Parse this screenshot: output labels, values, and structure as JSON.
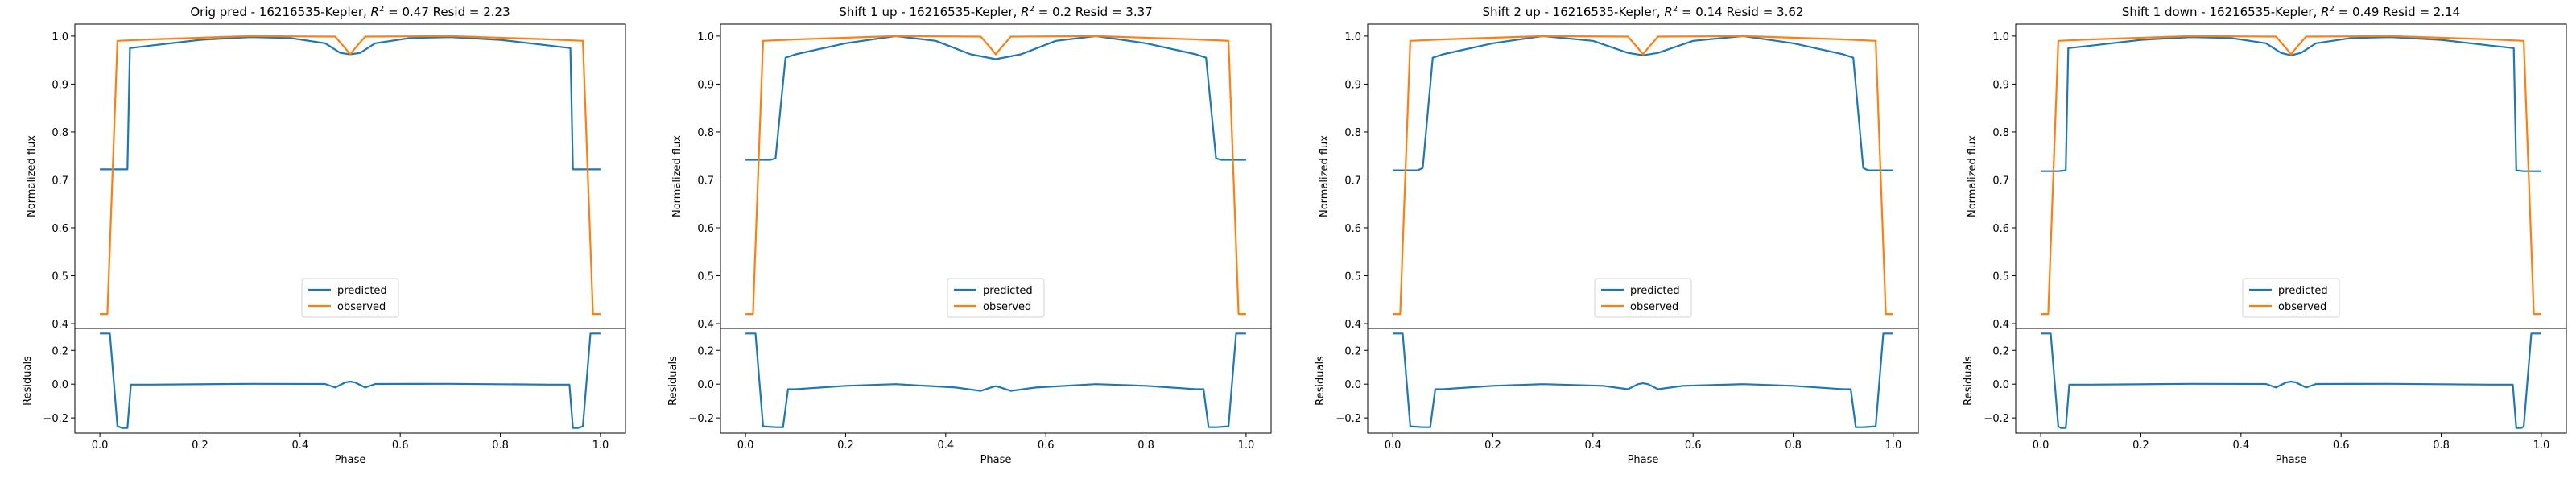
{
  "chart_data": [
    {
      "type": "line",
      "title": "Orig pred - 16216535-Kepler, R² = 0.47 Resid = 2.23",
      "title_prefix": "Orig pred - 16216535-Kepler, ",
      "r2_label": "R",
      "r2_exp": "2",
      "r2_value": " = 0.47 Resid = 2.23",
      "ylabel": "Normalized flux",
      "resid_ylabel": "Residuals",
      "xlabel": "Phase",
      "xlim": [
        -0.05,
        1.05
      ],
      "ylim": [
        0.39,
        1.025
      ],
      "resid_ylim": [
        -0.29,
        0.33
      ],
      "xticks": [
        0.0,
        0.2,
        0.4,
        0.6,
        0.8,
        1.0
      ],
      "xtick_labels": [
        "0.0",
        "0.2",
        "0.4",
        "0.6",
        "0.8",
        "1.0"
      ],
      "yticks": [
        0.4,
        0.5,
        0.6,
        0.7,
        0.8,
        0.9,
        1.0
      ],
      "ytick_labels": [
        "0.4",
        "0.5",
        "0.6",
        "0.7",
        "0.8",
        "0.9",
        "1.0"
      ],
      "resid_yticks": [
        -0.2,
        0.0,
        0.2
      ],
      "resid_ytick_labels": [
        "−0.2",
        "0.0",
        "0.2"
      ],
      "legend": [
        "predicted",
        "observed"
      ],
      "legend_location": "lower center",
      "series": [
        {
          "name": "predicted",
          "color": "#1f77b4",
          "x": [
            0.0,
            0.04,
            0.055,
            0.06,
            0.1,
            0.2,
            0.3,
            0.38,
            0.45,
            0.48,
            0.5,
            0.52,
            0.55,
            0.62,
            0.7,
            0.8,
            0.9,
            0.94,
            0.945,
            0.96,
            1.0
          ],
          "y": [
            0.722,
            0.722,
            0.722,
            0.975,
            0.98,
            0.992,
            0.998,
            0.996,
            0.985,
            0.965,
            0.962,
            0.965,
            0.985,
            0.996,
            0.998,
            0.992,
            0.98,
            0.975,
            0.722,
            0.722,
            0.722
          ]
        },
        {
          "name": "observed",
          "color": "#ff7f0e",
          "x": [
            0.0,
            0.015,
            0.035,
            0.1,
            0.3,
            0.47,
            0.49,
            0.5,
            0.51,
            0.53,
            0.7,
            0.9,
            0.965,
            0.985,
            1.0
          ],
          "y": [
            0.42,
            0.42,
            0.99,
            0.993,
            1.0,
            0.999,
            0.975,
            0.962,
            0.975,
            0.999,
            1.0,
            0.993,
            0.99,
            0.42,
            0.42
          ]
        }
      ],
      "residuals": {
        "name": "residuals",
        "color": "#1f77b4",
        "x": [
          0.0,
          0.02,
          0.035,
          0.045,
          0.055,
          0.062,
          0.1,
          0.3,
          0.45,
          0.47,
          0.49,
          0.5,
          0.51,
          0.53,
          0.55,
          0.7,
          0.9,
          0.938,
          0.945,
          0.955,
          0.965,
          0.98,
          1.0
        ],
        "y": [
          0.3,
          0.3,
          -0.25,
          -0.26,
          -0.26,
          -0.003,
          -0.003,
          0.002,
          0.001,
          -0.02,
          0.01,
          0.015,
          0.01,
          -0.02,
          0.001,
          0.002,
          -0.003,
          -0.003,
          -0.26,
          -0.26,
          -0.25,
          0.3,
          0.3
        ]
      }
    },
    {
      "type": "line",
      "title": "Shift 1 up - 16216535-Kepler, R² = 0.2 Resid = 3.37",
      "title_prefix": "Shift 1 up - 16216535-Kepler, ",
      "r2_label": "R",
      "r2_exp": "2",
      "r2_value": " = 0.2 Resid = 3.37",
      "ylabel": "Normalized flux",
      "resid_ylabel": "Residuals",
      "xlabel": "Phase",
      "xlim": [
        -0.05,
        1.05
      ],
      "ylim": [
        0.39,
        1.025
      ],
      "resid_ylim": [
        -0.29,
        0.33
      ],
      "xticks": [
        0.0,
        0.2,
        0.4,
        0.6,
        0.8,
        1.0
      ],
      "xtick_labels": [
        "0.0",
        "0.2",
        "0.4",
        "0.6",
        "0.8",
        "1.0"
      ],
      "yticks": [
        0.4,
        0.5,
        0.6,
        0.7,
        0.8,
        0.9,
        1.0
      ],
      "ytick_labels": [
        "0.4",
        "0.5",
        "0.6",
        "0.7",
        "0.8",
        "0.9",
        "1.0"
      ],
      "resid_yticks": [
        -0.2,
        0.0,
        0.2
      ],
      "resid_ytick_labels": [
        "−0.2",
        "0.0",
        "0.2"
      ],
      "legend": [
        "predicted",
        "observed"
      ],
      "legend_location": "lower center",
      "series": [
        {
          "name": "predicted",
          "color": "#1f77b4",
          "x": [
            0.0,
            0.05,
            0.06,
            0.08,
            0.1,
            0.2,
            0.3,
            0.38,
            0.45,
            0.5,
            0.55,
            0.62,
            0.7,
            0.8,
            0.9,
            0.92,
            0.94,
            0.95,
            1.0
          ],
          "y": [
            0.742,
            0.742,
            0.745,
            0.955,
            0.962,
            0.985,
            1.0,
            0.99,
            0.962,
            0.952,
            0.962,
            0.99,
            1.0,
            0.985,
            0.962,
            0.955,
            0.745,
            0.742,
            0.742
          ]
        },
        {
          "name": "observed",
          "color": "#ff7f0e",
          "x": [
            0.0,
            0.015,
            0.035,
            0.1,
            0.3,
            0.47,
            0.49,
            0.5,
            0.51,
            0.53,
            0.7,
            0.9,
            0.965,
            0.985,
            1.0
          ],
          "y": [
            0.42,
            0.42,
            0.99,
            0.993,
            1.0,
            0.999,
            0.975,
            0.962,
            0.975,
            0.999,
            1.0,
            0.993,
            0.99,
            0.42,
            0.42
          ]
        }
      ],
      "residuals": {
        "name": "residuals",
        "color": "#1f77b4",
        "x": [
          0.0,
          0.02,
          0.035,
          0.06,
          0.075,
          0.085,
          0.1,
          0.2,
          0.3,
          0.42,
          0.47,
          0.49,
          0.5,
          0.51,
          0.53,
          0.58,
          0.7,
          0.8,
          0.9,
          0.915,
          0.925,
          0.94,
          0.965,
          0.98,
          1.0
        ],
        "y": [
          0.3,
          0.3,
          -0.25,
          -0.255,
          -0.255,
          -0.03,
          -0.03,
          -0.01,
          0.0,
          -0.02,
          -0.04,
          -0.02,
          -0.012,
          -0.02,
          -0.04,
          -0.02,
          0.0,
          -0.01,
          -0.03,
          -0.03,
          -0.255,
          -0.255,
          -0.25,
          0.3,
          0.3
        ]
      }
    },
    {
      "type": "line",
      "title": "Shift 2 up - 16216535-Kepler, R² = 0.14 Resid = 3.62",
      "title_prefix": "Shift 2 up - 16216535-Kepler, ",
      "r2_label": "R",
      "r2_exp": "2",
      "r2_value": " = 0.14 Resid = 3.62",
      "ylabel": "Normalized flux",
      "resid_ylabel": "Residuals",
      "xlabel": "Phase",
      "xlim": [
        -0.05,
        1.05
      ],
      "ylim": [
        0.39,
        1.025
      ],
      "resid_ylim": [
        -0.29,
        0.33
      ],
      "xticks": [
        0.0,
        0.2,
        0.4,
        0.6,
        0.8,
        1.0
      ],
      "xtick_labels": [
        "0.0",
        "0.2",
        "0.4",
        "0.6",
        "0.8",
        "1.0"
      ],
      "yticks": [
        0.4,
        0.5,
        0.6,
        0.7,
        0.8,
        0.9,
        1.0
      ],
      "ytick_labels": [
        "0.4",
        "0.5",
        "0.6",
        "0.7",
        "0.8",
        "0.9",
        "1.0"
      ],
      "resid_yticks": [
        -0.2,
        0.0,
        0.2
      ],
      "resid_ytick_labels": [
        "−0.2",
        "0.0",
        "0.2"
      ],
      "legend": [
        "predicted",
        "observed"
      ],
      "legend_location": "lower center",
      "series": [
        {
          "name": "predicted",
          "color": "#1f77b4",
          "x": [
            0.0,
            0.05,
            0.06,
            0.08,
            0.1,
            0.2,
            0.3,
            0.4,
            0.47,
            0.5,
            0.53,
            0.6,
            0.7,
            0.8,
            0.9,
            0.92,
            0.94,
            0.95,
            1.0
          ],
          "y": [
            0.72,
            0.72,
            0.725,
            0.955,
            0.962,
            0.985,
            1.0,
            0.99,
            0.965,
            0.96,
            0.965,
            0.99,
            1.0,
            0.985,
            0.962,
            0.955,
            0.725,
            0.72,
            0.72
          ]
        },
        {
          "name": "observed",
          "color": "#ff7f0e",
          "x": [
            0.0,
            0.015,
            0.035,
            0.1,
            0.3,
            0.47,
            0.49,
            0.5,
            0.51,
            0.53,
            0.7,
            0.9,
            0.965,
            0.985,
            1.0
          ],
          "y": [
            0.42,
            0.42,
            0.99,
            0.993,
            1.0,
            0.999,
            0.975,
            0.962,
            0.975,
            0.999,
            1.0,
            0.993,
            0.99,
            0.42,
            0.42
          ]
        }
      ],
      "residuals": {
        "name": "residuals",
        "color": "#1f77b4",
        "x": [
          0.0,
          0.02,
          0.035,
          0.06,
          0.075,
          0.085,
          0.1,
          0.2,
          0.3,
          0.42,
          0.47,
          0.49,
          0.5,
          0.51,
          0.53,
          0.58,
          0.7,
          0.8,
          0.9,
          0.915,
          0.925,
          0.94,
          0.965,
          0.98,
          1.0
        ],
        "y": [
          0.3,
          0.3,
          -0.25,
          -0.255,
          -0.255,
          -0.03,
          -0.03,
          -0.01,
          0.0,
          -0.01,
          -0.03,
          0.0,
          0.005,
          0.0,
          -0.03,
          -0.01,
          0.0,
          -0.01,
          -0.03,
          -0.03,
          -0.255,
          -0.255,
          -0.25,
          0.3,
          0.3
        ]
      }
    },
    {
      "type": "line",
      "title": "Shift 1 down - 16216535-Kepler, R² = 0.49 Resid = 2.14",
      "title_prefix": "Shift 1 down - 16216535-Kepler, ",
      "r2_label": "R",
      "r2_exp": "2",
      "r2_value": " = 0.49 Resid = 2.14",
      "ylabel": "Normalized flux",
      "resid_ylabel": "Residuals",
      "xlabel": "Phase",
      "xlim": [
        -0.05,
        1.05
      ],
      "ylim": [
        0.39,
        1.025
      ],
      "resid_ylim": [
        -0.29,
        0.33
      ],
      "xticks": [
        0.0,
        0.2,
        0.4,
        0.6,
        0.8,
        1.0
      ],
      "xtick_labels": [
        "0.0",
        "0.2",
        "0.4",
        "0.6",
        "0.8",
        "1.0"
      ],
      "yticks": [
        0.4,
        0.5,
        0.6,
        0.7,
        0.8,
        0.9,
        1.0
      ],
      "ytick_labels": [
        "0.4",
        "0.5",
        "0.6",
        "0.7",
        "0.8",
        "0.9",
        "1.0"
      ],
      "resid_yticks": [
        -0.2,
        0.0,
        0.2
      ],
      "resid_ytick_labels": [
        "−0.2",
        "0.0",
        "0.2"
      ],
      "legend": [
        "predicted",
        "observed"
      ],
      "legend_location": "lower center",
      "series": [
        {
          "name": "predicted",
          "color": "#1f77b4",
          "x": [
            0.0,
            0.035,
            0.05,
            0.055,
            0.1,
            0.2,
            0.3,
            0.38,
            0.45,
            0.48,
            0.5,
            0.52,
            0.55,
            0.62,
            0.7,
            0.8,
            0.9,
            0.945,
            0.95,
            0.965,
            1.0
          ],
          "y": [
            0.718,
            0.718,
            0.72,
            0.975,
            0.98,
            0.992,
            0.998,
            0.996,
            0.985,
            0.965,
            0.96,
            0.965,
            0.985,
            0.996,
            0.998,
            0.992,
            0.98,
            0.975,
            0.72,
            0.718,
            0.718
          ]
        },
        {
          "name": "observed",
          "color": "#ff7f0e",
          "x": [
            0.0,
            0.015,
            0.035,
            0.1,
            0.3,
            0.47,
            0.49,
            0.5,
            0.51,
            0.53,
            0.7,
            0.9,
            0.965,
            0.985,
            1.0
          ],
          "y": [
            0.42,
            0.42,
            0.99,
            0.993,
            1.0,
            0.999,
            0.975,
            0.962,
            0.975,
            0.999,
            1.0,
            0.993,
            0.99,
            0.42,
            0.42
          ]
        }
      ],
      "residuals": {
        "name": "residuals",
        "color": "#1f77b4",
        "x": [
          0.0,
          0.02,
          0.035,
          0.04,
          0.05,
          0.057,
          0.1,
          0.3,
          0.45,
          0.47,
          0.49,
          0.5,
          0.51,
          0.53,
          0.55,
          0.7,
          0.9,
          0.943,
          0.95,
          0.96,
          0.965,
          0.98,
          1.0
        ],
        "y": [
          0.3,
          0.3,
          -0.25,
          -0.26,
          -0.26,
          -0.003,
          -0.003,
          0.002,
          0.001,
          -0.02,
          0.01,
          0.015,
          0.01,
          -0.02,
          0.001,
          0.002,
          -0.003,
          -0.003,
          -0.26,
          -0.26,
          -0.25,
          0.3,
          0.3
        ]
      }
    }
  ]
}
